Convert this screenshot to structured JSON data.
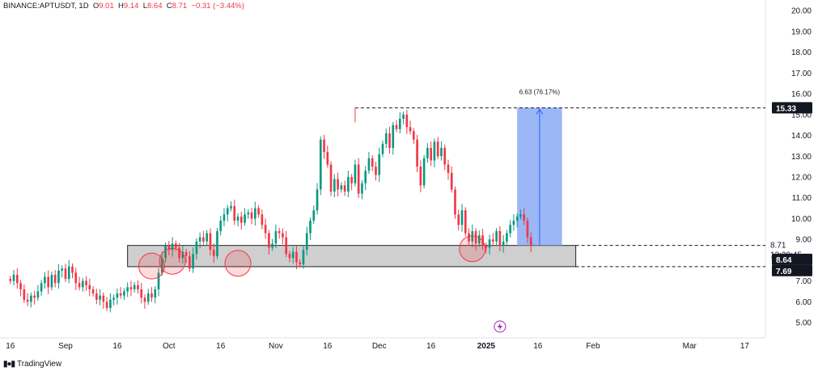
{
  "header": {
    "symbol": "BINANCE:APTUSDT, 1D",
    "open_label": "O",
    "open": "9.01",
    "high_label": "H",
    "high": "9.14",
    "low_label": "L",
    "low": "8.64",
    "close_label": "C",
    "close": "8.71",
    "change": "−0.31 (−3.44%)"
  },
  "footer": {
    "brand": "TradingView",
    "logo_icon": "tradingview-logo-icon"
  },
  "chart_data": {
    "type": "candlestick",
    "title": "BINANCE:APTUSDT, 1D",
    "y_ticks": [
      "20.00",
      "19.00",
      "18.00",
      "17.00",
      "16.00",
      "15.00",
      "14.00",
      "13.00",
      "12.00",
      "11.00",
      "10.00",
      "9.00",
      "8.00",
      "7.00",
      "6.00",
      "5.00"
    ],
    "y_range": [
      4.5,
      20.2
    ],
    "x_ticks": [
      {
        "label": "16",
        "day": 0
      },
      {
        "label": "Sep",
        "day": 16
      },
      {
        "label": "16",
        "day": 31
      },
      {
        "label": "Oct",
        "day": 46
      },
      {
        "label": "16",
        "day": 61
      },
      {
        "label": "Nov",
        "day": 77
      },
      {
        "label": "16",
        "day": 92
      },
      {
        "label": "Dec",
        "day": 107
      },
      {
        "label": "16",
        "day": 122
      },
      {
        "label": "2025",
        "day": 138
      },
      {
        "label": "16",
        "day": 153
      },
      {
        "label": "Feb",
        "day": 169
      },
      {
        "label": "Mar",
        "day": 197
      },
      {
        "label": "17",
        "day": 213
      }
    ],
    "x_range": [
      -3,
      219
    ],
    "close_series": [
      7.0,
      7.3,
      6.9,
      6.6,
      6.1,
      6.0,
      6.3,
      6.2,
      6.5,
      6.9,
      7.2,
      6.7,
      7.3,
      6.9,
      7.5,
      7.6,
      7.1,
      7.7,
      7.4,
      6.9,
      6.7,
      7.0,
      6.8,
      6.6,
      6.4,
      6.1,
      6.3,
      6.0,
      5.7,
      6.1,
      6.2,
      6.4,
      6.3,
      6.5,
      6.7,
      6.6,
      6.8,
      6.6,
      6.2,
      6.0,
      6.4,
      6.2,
      6.6,
      7.4,
      8.1,
      8.7,
      8.5,
      8.8,
      8.6,
      8.1,
      8.4,
      8.2,
      7.6,
      8.3,
      8.9,
      9.1,
      8.9,
      9.3,
      8.5,
      8.2,
      9.4,
      9.9,
      10.2,
      10.5,
      10.6,
      9.9,
      10.1,
      9.8,
      10.2,
      10.3,
      10.0,
      10.5,
      10.2,
      9.7,
      9.3,
      8.6,
      8.8,
      9.4,
      9.3,
      9.1,
      8.3,
      8.1,
      8.4,
      7.9,
      7.8,
      8.5,
      9.3,
      9.9,
      10.4,
      11.4,
      13.8,
      13.2,
      12.6,
      11.3,
      11.9,
      11.4,
      11.6,
      11.3,
      12.0,
      11.7,
      12.6,
      11.2,
      11.7,
      12.3,
      12.9,
      12.5,
      12.1,
      13.1,
      13.6,
      14.1,
      13.4,
      14.5,
      14.3,
      14.8,
      15.0,
      14.4,
      14.2,
      13.8,
      12.5,
      11.6,
      12.9,
      13.4,
      12.8,
      13.7,
      13.0,
      13.4,
      12.6,
      12.2,
      11.4,
      10.2,
      9.7,
      10.4,
      9.3,
      8.9,
      9.4,
      8.8,
      9.2,
      8.7,
      8.6,
      9.0,
      8.9,
      9.4,
      8.7,
      8.9,
      9.3,
      9.7,
      9.9,
      10.1,
      10.2,
      9.9,
      9.1,
      8.71
    ],
    "annotations": [
      {
        "type": "support_zone",
        "from_day": 34,
        "to_day": 164,
        "low": 7.69,
        "high": 8.71,
        "color": "#cfcfcf"
      },
      {
        "type": "circles",
        "days": [
          41,
          47,
          66,
          134
        ],
        "prices": [
          7.72,
          7.95,
          7.85,
          8.55
        ],
        "color": "#f23645"
      },
      {
        "type": "target_projection",
        "from_day": 100,
        "to_day": 219,
        "level": 15.33,
        "label": "6.63 (76.17%)"
      },
      {
        "type": "long_box",
        "from_day": 147,
        "to_day": 160,
        "low": 8.71,
        "high": 15.33,
        "color": "#8aaaf5"
      },
      {
        "type": "dashed_level",
        "from_day": 164,
        "level": 8.71
      }
    ],
    "price_labels": {
      "target": "15.33",
      "last": "8.71",
      "countdown": "13:29:45",
      "bar_low": "8.64",
      "zone_low": "7.69"
    },
    "colors": {
      "up": "#089981",
      "down": "#f23645",
      "axis_text": "#131722"
    },
    "lightning_icon": "lightning-icon"
  }
}
